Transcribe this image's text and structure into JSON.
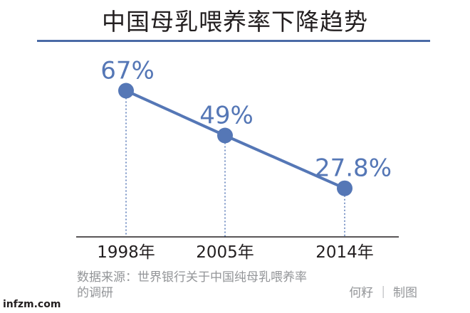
{
  "chart_data": {
    "type": "line",
    "title": "中国母乳喂养率下降趋势",
    "categories": [
      "1998年",
      "2005年",
      "2014年"
    ],
    "values": [
      67,
      49,
      27.8
    ],
    "data_labels": [
      "67%",
      "49%",
      "27.8%"
    ],
    "grid": false,
    "colors": {
      "line": "#5577b6",
      "title_rule": "#4a6aa6",
      "axis": "#231f20",
      "source_text": "#939598"
    }
  },
  "source": {
    "text_line1": "数据来源：世界银行关于中国纯母乳喂养率",
    "text_line2": "的调研",
    "credit": "何籽 ｜ 制图"
  },
  "watermark": "infzm.com"
}
